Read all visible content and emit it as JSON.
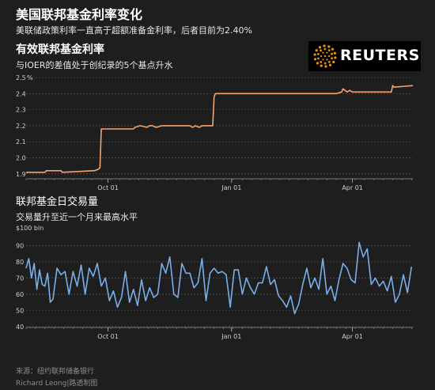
{
  "header": {
    "title": "美国联邦基金利率变化",
    "subtitle": "美联储政策利率一直高于超额准备金利率，后者目前为2.40%"
  },
  "logo": {
    "text": "REUTERS",
    "icon": "reuters-dot-sphere-icon"
  },
  "footer": {
    "source": "来源：纽约联邦储备银行",
    "credit": "Richard Leong|路透制图"
  },
  "colors": {
    "rate_line": "#f5a26f",
    "volume_line": "#7aaee8",
    "grid": "#5a5a5a",
    "background": "#1e1e1e"
  },
  "chart_data": [
    {
      "type": "line",
      "title": "有效联邦基金利率",
      "subtitle": "与IOER的差值处于创纪录的5个基点升水",
      "unit_label": "%",
      "ylim": [
        1.85,
        2.5
      ],
      "yticks": [
        1.9,
        2.0,
        2.1,
        2.2,
        2.3,
        2.4,
        2.5
      ],
      "ytick_labels": [
        "1.9",
        "2.0",
        "2.1",
        "2.2",
        "2.3",
        "2.4",
        "2.5"
      ],
      "xlim": [
        "2018-08-01",
        "2019-05-16"
      ],
      "xticks": [
        "2018-10-01",
        "2019-01-01",
        "2019-04-01"
      ],
      "xtick_labels": [
        "Oct 01",
        "Jan 01",
        "Apr 01"
      ],
      "grid": true,
      "series": [
        {
          "x": [
            "2018-08-01",
            "2018-08-15",
            "2018-08-16",
            "2018-08-27",
            "2018-08-28",
            "2018-09-20",
            "2018-09-21",
            "2018-09-24",
            "2018-09-25",
            "2018-09-26",
            "2018-09-27",
            "2018-10-20",
            "2018-10-21",
            "2018-10-25",
            "2018-10-30",
            "2018-11-01",
            "2018-11-03",
            "2018-11-06",
            "2018-11-10",
            "2018-11-20",
            "2018-12-01",
            "2018-12-03",
            "2018-12-05",
            "2018-12-08",
            "2018-12-10",
            "2018-12-18",
            "2018-12-19",
            "2018-12-20",
            "2019-01-10",
            "2019-02-01",
            "2019-02-15",
            "2019-03-01",
            "2019-03-20",
            "2019-03-24",
            "2019-03-25",
            "2019-03-28",
            "2019-03-30",
            "2019-04-01",
            "2019-04-15",
            "2019-04-30",
            "2019-05-01",
            "2019-05-02",
            "2019-05-16"
          ],
          "y": [
            1.91,
            1.91,
            1.92,
            1.92,
            1.91,
            1.92,
            1.92,
            1.93,
            1.94,
            2.18,
            2.18,
            2.18,
            2.19,
            2.2,
            2.19,
            2.2,
            2.2,
            2.19,
            2.2,
            2.2,
            2.2,
            2.19,
            2.2,
            2.19,
            2.2,
            2.2,
            2.38,
            2.4,
            2.4,
            2.4,
            2.4,
            2.4,
            2.4,
            2.41,
            2.43,
            2.41,
            2.42,
            2.41,
            2.41,
            2.41,
            2.45,
            2.44,
            2.45
          ]
        }
      ]
    },
    {
      "type": "line",
      "title": "联邦基金日交易量",
      "subtitle": "交易量升至近一个月来最高水平",
      "unit_label": "$100 bln",
      "ylim": [
        37,
        100
      ],
      "yticks": [
        40,
        50,
        60,
        70,
        80,
        90
      ],
      "ytick_labels": [
        "40",
        "50",
        "60",
        "70",
        "80",
        "90"
      ],
      "xlim": [
        "2018-08-01",
        "2019-05-16"
      ],
      "xticks": [
        "2018-10-01",
        "2019-01-01",
        "2019-04-01"
      ],
      "xtick_labels": [
        "Oct 01",
        "Jan 01",
        "Apr 01"
      ],
      "grid": true,
      "series": [
        {
          "x": [
            "2018-08-01",
            "2018-08-03",
            "2018-08-05",
            "2018-08-07",
            "2018-08-09",
            "2018-08-11",
            "2018-08-13",
            "2018-08-15",
            "2018-08-17",
            "2018-08-19",
            "2018-08-21",
            "2018-08-24",
            "2018-08-27",
            "2018-08-30",
            "2018-09-02",
            "2018-09-05",
            "2018-09-08",
            "2018-09-11",
            "2018-09-14",
            "2018-09-17",
            "2018-09-20",
            "2018-09-23",
            "2018-09-26",
            "2018-09-29",
            "2018-10-02",
            "2018-10-05",
            "2018-10-08",
            "2018-10-11",
            "2018-10-14",
            "2018-10-17",
            "2018-10-20",
            "2018-10-23",
            "2018-10-26",
            "2018-10-29",
            "2018-11-01",
            "2018-11-04",
            "2018-11-07",
            "2018-11-10",
            "2018-11-13",
            "2018-11-16",
            "2018-11-19",
            "2018-11-22",
            "2018-11-25",
            "2018-11-28",
            "2018-12-01",
            "2018-12-04",
            "2018-12-07",
            "2018-12-10",
            "2018-12-13",
            "2018-12-16",
            "2018-12-19",
            "2018-12-22",
            "2018-12-25",
            "2018-12-28",
            "2018-12-31",
            "2019-01-03",
            "2019-01-06",
            "2019-01-09",
            "2019-01-12",
            "2019-01-15",
            "2019-01-18",
            "2019-01-21",
            "2019-01-24",
            "2019-01-27",
            "2019-01-30",
            "2019-02-02",
            "2019-02-05",
            "2019-02-08",
            "2019-02-11",
            "2019-02-14",
            "2019-02-17",
            "2019-02-20",
            "2019-02-23",
            "2019-02-26",
            "2019-03-01",
            "2019-03-04",
            "2019-03-07",
            "2019-03-10",
            "2019-03-13",
            "2019-03-16",
            "2019-03-19",
            "2019-03-22",
            "2019-03-25",
            "2019-03-28",
            "2019-03-31",
            "2019-04-03",
            "2019-04-06",
            "2019-04-09",
            "2019-04-12",
            "2019-04-15",
            "2019-04-18",
            "2019-04-21",
            "2019-04-24",
            "2019-04-27",
            "2019-04-30",
            "2019-05-03",
            "2019-05-06",
            "2019-05-09",
            "2019-05-12",
            "2019-05-15"
          ],
          "y": [
            76,
            82,
            70,
            79,
            63,
            75,
            66,
            65,
            73,
            55,
            57,
            76,
            72,
            74,
            60,
            74,
            65,
            78,
            60,
            76,
            71,
            79,
            65,
            70,
            56,
            62,
            52,
            58,
            74,
            55,
            63,
            53,
            69,
            56,
            64,
            58,
            60,
            79,
            73,
            83,
            60,
            58,
            79,
            73,
            73,
            64,
            67,
            82,
            56,
            73,
            76,
            73,
            74,
            72,
            52,
            75,
            75,
            60,
            70,
            64,
            60,
            67,
            67,
            77,
            66,
            69,
            59,
            56,
            52,
            59,
            48,
            54,
            66,
            76,
            64,
            70,
            63,
            82,
            60,
            65,
            56,
            69,
            79,
            76,
            69,
            67,
            92,
            83,
            88,
            66,
            70,
            65,
            68,
            62,
            71,
            55,
            60,
            72,
            61,
            77
          ]
        }
      ]
    }
  ]
}
